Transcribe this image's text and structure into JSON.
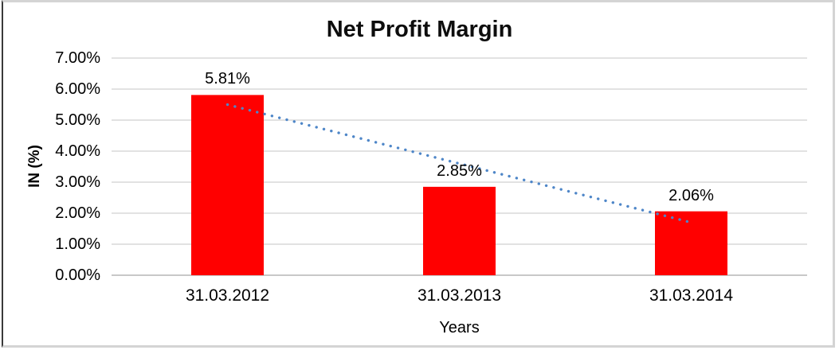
{
  "chart_data": {
    "type": "bar",
    "title": "Net Profit Margin",
    "xlabel": "Years",
    "ylabel": "IN (%)",
    "categories": [
      "31.03.2012",
      "31.03.2013",
      "31.03.2014"
    ],
    "values": [
      5.81,
      2.85,
      2.06
    ],
    "data_labels": [
      "5.81%",
      "2.85%",
      "2.06%"
    ],
    "ylim": [
      0,
      7
    ],
    "ytick_step": 1,
    "ytick_labels": [
      "0.00%",
      "1.00%",
      "2.00%",
      "3.00%",
      "4.00%",
      "5.00%",
      "6.00%",
      "7.00%"
    ],
    "grid": true,
    "legend": "none",
    "bar_color": "#FF0000",
    "gridline_color": "#D9D9D9",
    "baseline_color": "#C8C8C8",
    "text_color": "#000000",
    "trendline": {
      "type": "linear",
      "style": "dotted",
      "color": "#4E86C8",
      "start_value": 5.5,
      "end_value": 1.7
    }
  }
}
